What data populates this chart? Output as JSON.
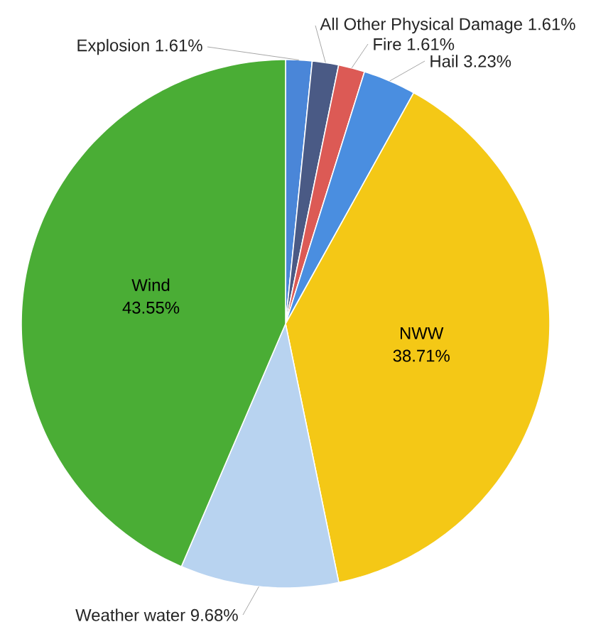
{
  "chart_data": {
    "type": "pie",
    "categories": [
      "Explosion",
      "All Other Physical Damage",
      "Fire",
      "Hail",
      "NWW",
      "Weather water",
      "Wind"
    ],
    "values": [
      1.61,
      1.61,
      1.61,
      3.23,
      38.71,
      9.68,
      43.55
    ],
    "value_labels": [
      "1.61%",
      "1.61%",
      "1.61%",
      "3.23%",
      "38.71%",
      "9.68%",
      "43.55%"
    ],
    "colors": [
      "#4a86d8",
      "#4a5a85",
      "#dc5a55",
      "#4a8ee0",
      "#f4c816",
      "#b8d3f0",
      "#4aad35"
    ]
  }
}
